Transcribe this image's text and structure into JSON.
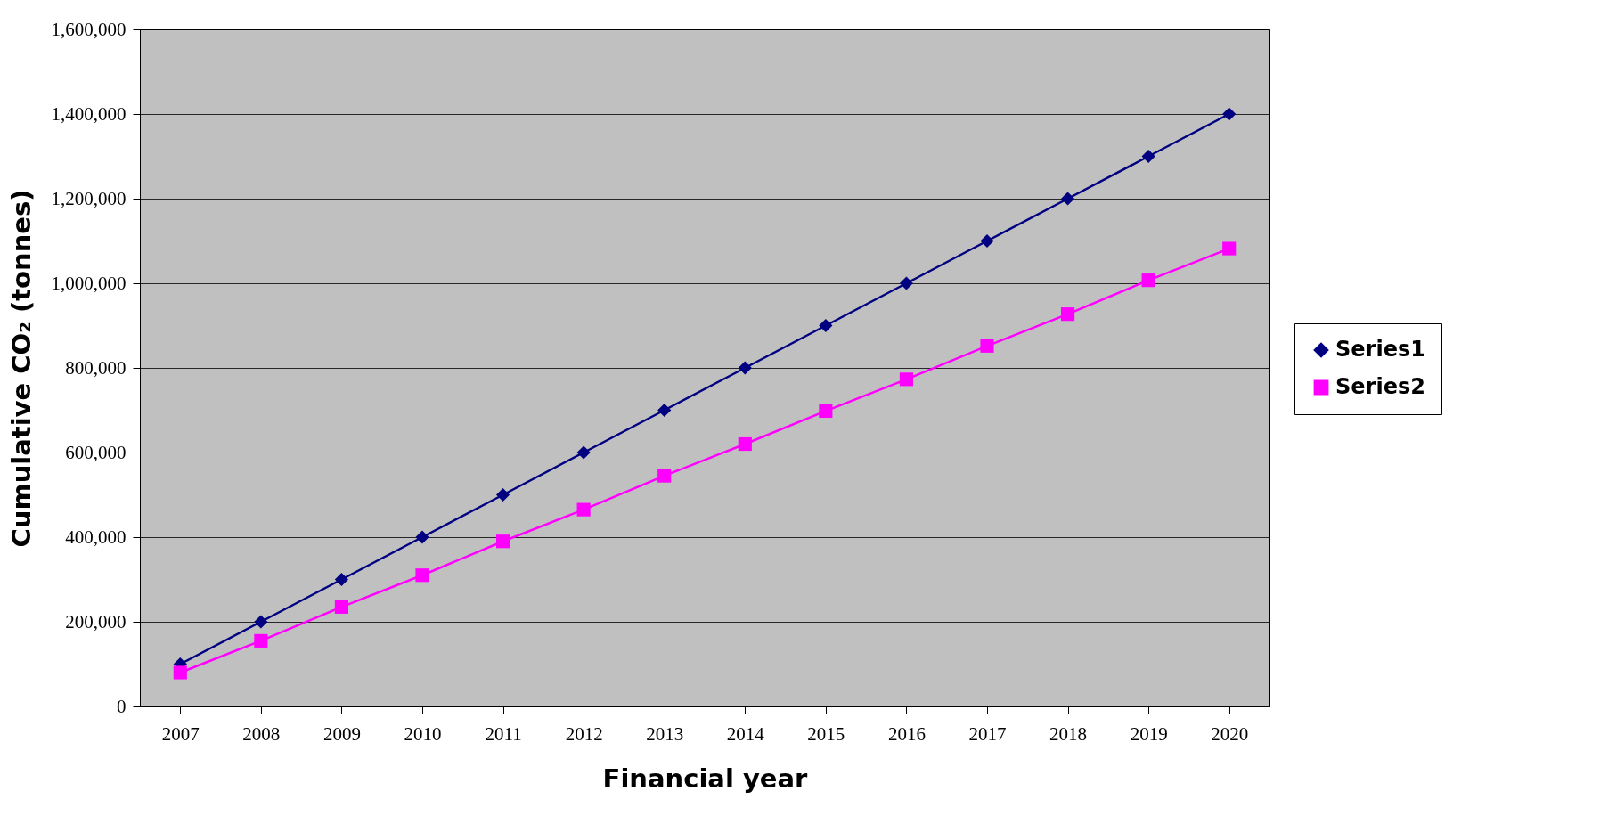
{
  "chart_data": {
    "type": "line",
    "xlabel": "Financial year",
    "ylabel": "Cumulative CO₂ (tonnes)",
    "categories": [
      "2007",
      "2008",
      "2009",
      "2010",
      "2011",
      "2012",
      "2013",
      "2014",
      "2015",
      "2016",
      "2017",
      "2018",
      "2019",
      "2020"
    ],
    "series": [
      {
        "name": "Series1",
        "color": "#000080",
        "marker": "diamond",
        "values": [
          100000,
          200000,
          300000,
          400000,
          500000,
          600000,
          700000,
          800000,
          900000,
          1000000,
          1100000,
          1200000,
          1300000,
          1400000
        ]
      },
      {
        "name": "Series2",
        "color": "#ff00ff",
        "marker": "square",
        "values": [
          80000,
          155000,
          235000,
          310000,
          390000,
          465000,
          545000,
          620000,
          698000,
          773000,
          852000,
          927000,
          1007000,
          1082000
        ]
      }
    ],
    "ylim": [
      0,
      1600000
    ],
    "yticks": [
      0,
      {
        "value": 200000,
        "label": "200,000"
      },
      {
        "value": 400000,
        "label": "400,000"
      },
      {
        "value": 600000,
        "label": "600,000"
      },
      {
        "value": 800000,
        "label": "800,000"
      },
      {
        "value": 1000000,
        "label": "1,000,000"
      },
      {
        "value": 1200000,
        "label": "1,200,000"
      },
      {
        "value": 1400000,
        "label": "1,400,000"
      },
      {
        "value": 1600000,
        "label": "1,600,000"
      }
    ],
    "grid": "y",
    "legend": "right",
    "line_style": "solid"
  }
}
